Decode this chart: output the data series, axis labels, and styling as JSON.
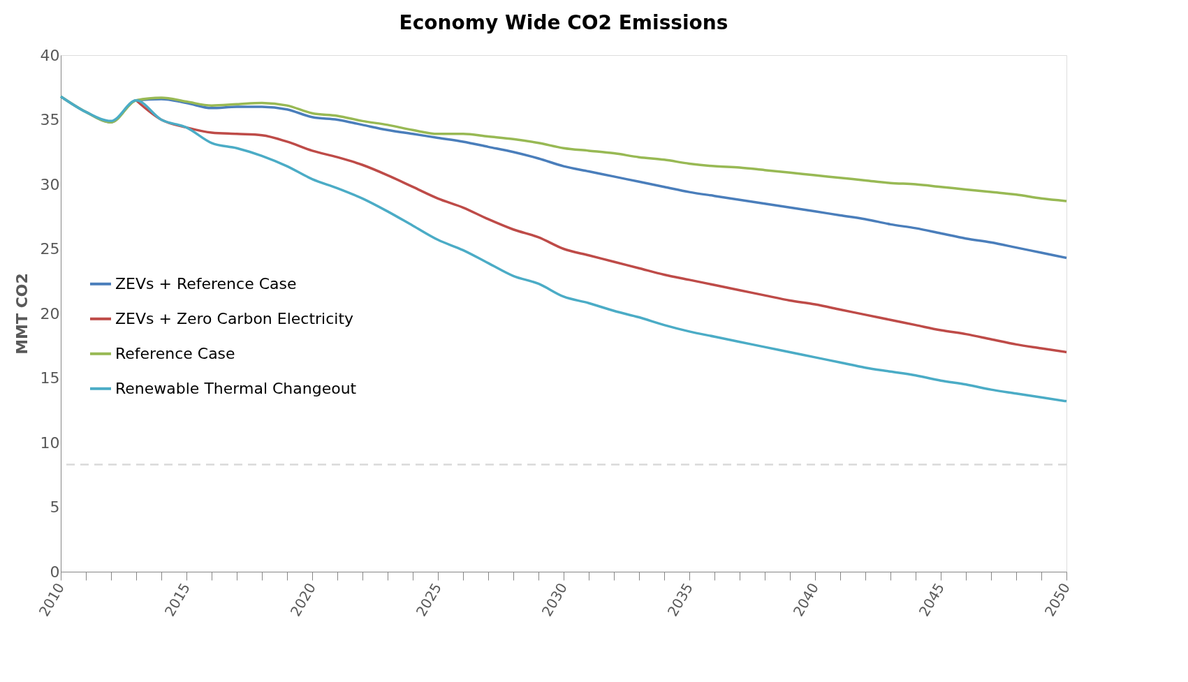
{
  "chart_data": {
    "type": "line",
    "title": "Economy Wide CO2 Emissions",
    "ylabel": "MMT CO2",
    "x": [
      2010,
      2011,
      2012,
      2013,
      2014,
      2015,
      2016,
      2017,
      2018,
      2019,
      2020,
      2021,
      2022,
      2023,
      2024,
      2025,
      2026,
      2027,
      2028,
      2029,
      2030,
      2031,
      2032,
      2033,
      2034,
      2035,
      2036,
      2037,
      2038,
      2039,
      2040,
      2041,
      2042,
      2043,
      2044,
      2045,
      2046,
      2047,
      2048,
      2049,
      2050
    ],
    "series": [
      {
        "name": "ZEVs + Reference Case",
        "color": "#4a7ebb",
        "values": [
          36.8,
          35.6,
          34.8,
          36.5,
          36.6,
          36.3,
          35.9,
          36.0,
          36.0,
          35.8,
          35.2,
          35.0,
          34.6,
          34.2,
          33.9,
          33.6,
          33.3,
          32.9,
          32.5,
          32.0,
          31.4,
          31.0,
          30.6,
          30.2,
          29.8,
          29.4,
          29.1,
          28.8,
          28.5,
          28.2,
          27.9,
          27.6,
          27.3,
          26.9,
          26.6,
          26.2,
          25.8,
          25.5,
          25.1,
          24.7,
          24.3
        ]
      },
      {
        "name": "ZEVs + Zero Carbon Electricity",
        "color": "#be4b48",
        "values": [
          null,
          null,
          null,
          36.5,
          35.0,
          34.4,
          34.0,
          33.9,
          33.8,
          33.3,
          32.6,
          32.1,
          31.5,
          30.7,
          29.8,
          28.9,
          28.2,
          27.3,
          26.5,
          25.9,
          25.0,
          24.5,
          24.0,
          23.5,
          23.0,
          22.6,
          22.2,
          21.8,
          21.4,
          21.0,
          20.7,
          20.3,
          19.9,
          19.5,
          19.1,
          18.7,
          18.4,
          18.0,
          17.6,
          17.3,
          17.0
        ]
      },
      {
        "name": "Reference Case",
        "color": "#98b954",
        "values": [
          36.8,
          35.6,
          34.8,
          36.5,
          36.7,
          36.4,
          36.1,
          36.2,
          36.3,
          36.1,
          35.5,
          35.3,
          34.9,
          34.6,
          34.2,
          33.9,
          33.9,
          33.7,
          33.5,
          33.2,
          32.8,
          32.6,
          32.4,
          32.1,
          31.9,
          31.6,
          31.4,
          31.3,
          31.1,
          30.9,
          30.7,
          30.5,
          30.3,
          30.1,
          30.0,
          29.8,
          29.6,
          29.4,
          29.2,
          28.9,
          28.7
        ]
      },
      {
        "name": "Renewable Thermal Changeout",
        "color": "#4bacc6",
        "values": [
          36.8,
          35.6,
          34.9,
          36.5,
          35.0,
          34.4,
          33.2,
          32.8,
          32.2,
          31.4,
          30.4,
          29.7,
          28.9,
          27.9,
          26.8,
          25.7,
          24.9,
          23.9,
          22.9,
          22.3,
          21.3,
          20.8,
          20.2,
          19.7,
          19.1,
          18.6,
          18.2,
          17.8,
          17.4,
          17.0,
          16.6,
          16.2,
          15.8,
          15.5,
          15.2,
          14.8,
          14.5,
          14.1,
          13.8,
          13.5,
          13.2
        ]
      }
    ],
    "xlim": [
      2010,
      2050
    ],
    "xticks": [
      2010,
      {
        "value": 2011,
        "label": null
      },
      {
        "value": 2012,
        "label": null
      },
      {
        "value": 2013,
        "label": null
      },
      {
        "value": 2014,
        "label": null
      },
      2015,
      {
        "value": 2016,
        "label": null
      },
      {
        "value": 2017,
        "label": null
      },
      {
        "value": 2018,
        "label": null
      },
      {
        "value": 2019,
        "label": null
      },
      2020,
      {
        "value": 2021,
        "label": null
      },
      {
        "value": 2022,
        "label": null
      },
      {
        "value": 2023,
        "label": null
      },
      {
        "value": 2024,
        "label": null
      },
      2025,
      {
        "value": 2026,
        "label": null
      },
      {
        "value": 2027,
        "label": null
      },
      {
        "value": 2028,
        "label": null
      },
      {
        "value": 2029,
        "label": null
      },
      2030,
      {
        "value": 2031,
        "label": null
      },
      {
        "value": 2032,
        "label": null
      },
      {
        "value": 2033,
        "label": null
      },
      {
        "value": 2034,
        "label": null
      },
      2035,
      {
        "value": 2036,
        "label": null
      },
      {
        "value": 2037,
        "label": null
      },
      {
        "value": 2038,
        "label": null
      },
      {
        "value": 2039,
        "label": null
      },
      2040,
      {
        "value": 2041,
        "label": null
      },
      {
        "value": 2042,
        "label": null
      },
      {
        "value": 2043,
        "label": null
      },
      {
        "value": 2044,
        "label": null
      },
      2045,
      {
        "value": 2046,
        "label": null
      },
      {
        "value": 2047,
        "label": null
      },
      {
        "value": 2048,
        "label": null
      },
      {
        "value": 2049,
        "label": null
      },
      2050
    ],
    "ylim": [
      0,
      40
    ],
    "yticks": [
      0,
      5,
      10,
      15,
      20,
      25,
      30,
      35,
      40
    ],
    "ref_lines": [
      {
        "axis": "y",
        "value": 8.3,
        "color": "#d9d9d9",
        "line_style": "dashed"
      }
    ],
    "grid": false,
    "legend": "left",
    "marker": "none",
    "line_style": "solid"
  }
}
